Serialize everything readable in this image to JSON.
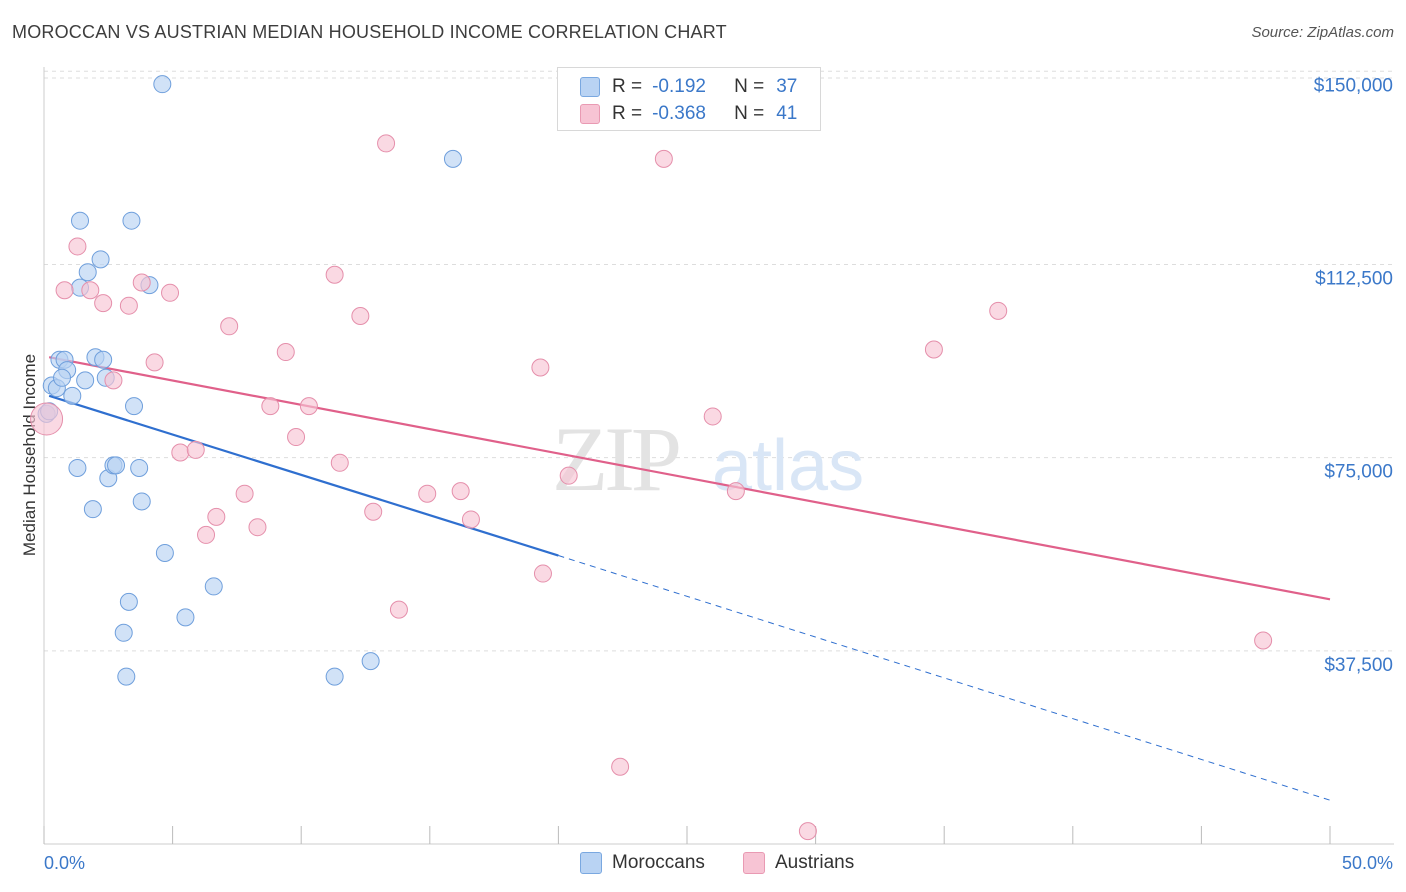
{
  "title": "MOROCCAN VS AUSTRIAN MEDIAN HOUSEHOLD INCOME CORRELATION CHART",
  "source": "Source: ZipAtlas.com",
  "watermark": {
    "zip": "ZIP",
    "atlas": "atlas"
  },
  "legend": {
    "rows": [
      {
        "r_label": "R =",
        "r_value": "-0.192",
        "n_label": "N =",
        "n_value": "37",
        "color": "#b9d3f3",
        "border": "#7aa8e0"
      },
      {
        "r_label": "R =",
        "r_value": "-0.368",
        "n_label": "N =",
        "n_value": "41",
        "color": "#f7c4d4",
        "border": "#e99ab3"
      }
    ]
  },
  "bottom_legend": {
    "moroccans": "Moroccans",
    "austrians": "Austrians"
  },
  "chart_data": {
    "type": "scatter",
    "xlabel": "",
    "ylabel": "Median Household Income",
    "x_range": [
      0,
      50
    ],
    "y_range": [
      0,
      152000
    ],
    "x_tick_labels": [
      "0.0%",
      "50.0%"
    ],
    "y_ticks": [
      {
        "value": 37500,
        "label": "$37,500"
      },
      {
        "value": 75000,
        "label": "$75,000"
      },
      {
        "value": 112500,
        "label": "$112,500"
      },
      {
        "value": 150000,
        "label": "$150,000"
      }
    ],
    "grid": true,
    "series": [
      {
        "name": "Moroccans",
        "color": "#b9d3f3",
        "stroke": "#6f9fdc",
        "line_color": "#2f6fcf",
        "trend": {
          "x0": 0.2,
          "y0": 87000,
          "x1": 20,
          "y1": 56000,
          "dash_to_x": 50,
          "dash_to_y": 8500
        },
        "points": [
          [
            0.1,
            83500
          ],
          [
            0.2,
            84000
          ],
          [
            0.3,
            89000
          ],
          [
            0.5,
            88500
          ],
          [
            0.6,
            94000
          ],
          [
            0.8,
            94000
          ],
          [
            0.9,
            92000
          ],
          [
            0.7,
            90500
          ],
          [
            1.1,
            87000
          ],
          [
            1.3,
            73000
          ],
          [
            1.4,
            108000
          ],
          [
            1.6,
            90000
          ],
          [
            1.7,
            111000
          ],
          [
            1.4,
            121000
          ],
          [
            1.9,
            65000
          ],
          [
            2.0,
            94500
          ],
          [
            2.2,
            113500
          ],
          [
            2.3,
            94000
          ],
          [
            2.4,
            90500
          ],
          [
            2.5,
            71000
          ],
          [
            2.7,
            73500
          ],
          [
            2.8,
            73500
          ],
          [
            3.1,
            41000
          ],
          [
            3.2,
            32500
          ],
          [
            3.3,
            47000
          ],
          [
            3.4,
            121000
          ],
          [
            3.5,
            85000
          ],
          [
            3.7,
            73000
          ],
          [
            3.8,
            66500
          ],
          [
            4.1,
            108500
          ],
          [
            4.6,
            147500
          ],
          [
            4.7,
            56500
          ],
          [
            5.5,
            44000
          ],
          [
            6.6,
            50000
          ],
          [
            11.3,
            32500
          ],
          [
            12.7,
            35500
          ],
          [
            15.9,
            133000
          ]
        ]
      },
      {
        "name": "Austrians",
        "color": "#f7c4d4",
        "stroke": "#e58fab",
        "line_color": "#e0608a",
        "trend": {
          "x0": 0.2,
          "y0": 94500,
          "x1": 50,
          "y1": 47500
        },
        "points": [
          [
            0.1,
            82500
          ],
          [
            0.8,
            107500
          ],
          [
            1.3,
            116000
          ],
          [
            1.8,
            107500
          ],
          [
            2.3,
            105000
          ],
          [
            2.7,
            90000
          ],
          [
            3.3,
            104500
          ],
          [
            3.8,
            109000
          ],
          [
            4.3,
            93500
          ],
          [
            4.9,
            107000
          ],
          [
            5.3,
            76000
          ],
          [
            5.9,
            76500
          ],
          [
            6.3,
            60000
          ],
          [
            6.7,
            63500
          ],
          [
            7.2,
            100500
          ],
          [
            7.8,
            68000
          ],
          [
            8.3,
            61500
          ],
          [
            8.8,
            85000
          ],
          [
            9.4,
            95500
          ],
          [
            9.8,
            79000
          ],
          [
            10.3,
            85000
          ],
          [
            11.3,
            110500
          ],
          [
            11.5,
            74000
          ],
          [
            12.3,
            102500
          ],
          [
            12.8,
            64500
          ],
          [
            13.3,
            136000
          ],
          [
            13.8,
            45500
          ],
          [
            14.9,
            68000
          ],
          [
            16.2,
            68500
          ],
          [
            16.6,
            63000
          ],
          [
            19.3,
            92500
          ],
          [
            19.4,
            52500
          ],
          [
            20.4,
            71500
          ],
          [
            22.4,
            15000
          ],
          [
            24.1,
            133000
          ],
          [
            26.0,
            83000
          ],
          [
            26.9,
            68500
          ],
          [
            29.7,
            2500
          ],
          [
            34.6,
            96000
          ],
          [
            37.1,
            103500
          ],
          [
            47.4,
            39500
          ]
        ]
      }
    ]
  }
}
